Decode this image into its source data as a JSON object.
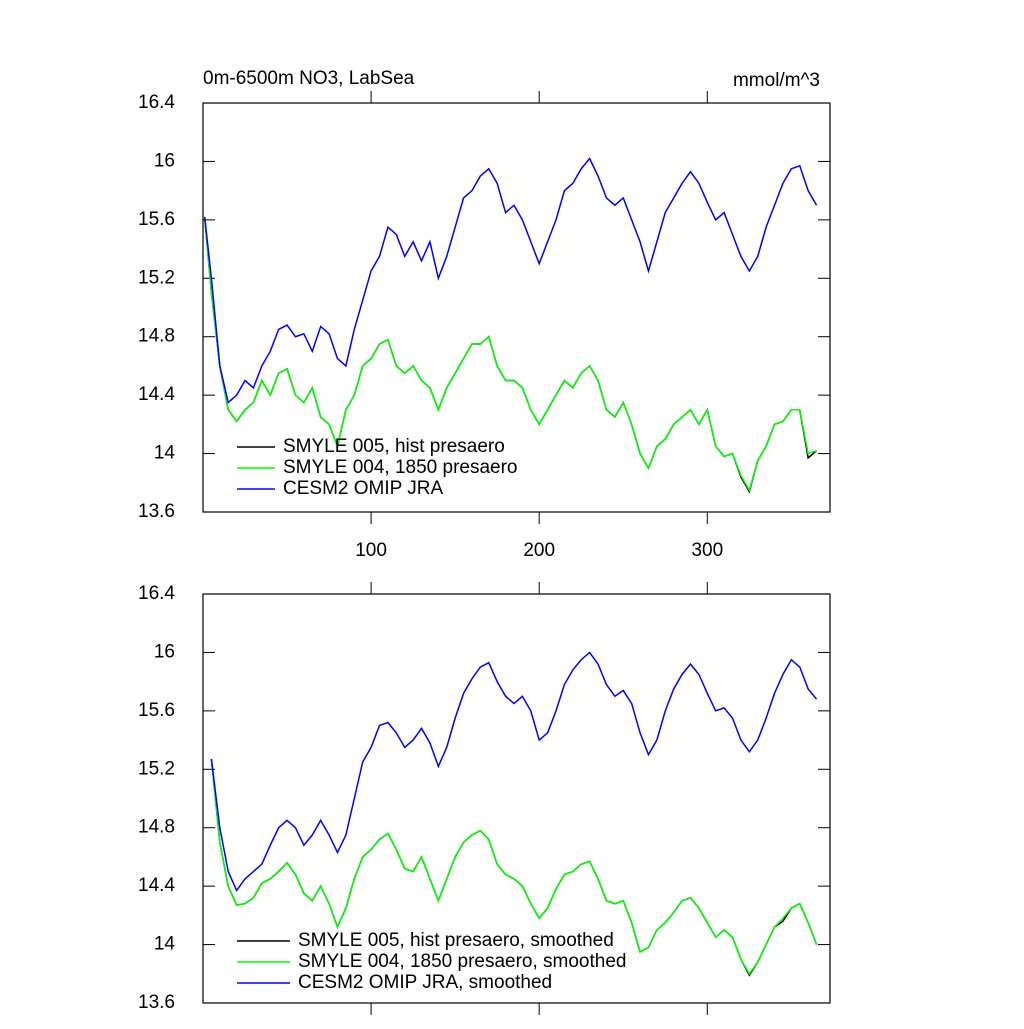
{
  "chart_data": [
    {
      "type": "line",
      "title": "0m-6500m NO3, LabSea",
      "units": "mmol/m^3",
      "x": [
        1,
        5,
        10,
        15,
        20,
        25,
        30,
        35,
        40,
        45,
        50,
        55,
        60,
        65,
        70,
        75,
        80,
        85,
        90,
        95,
        100,
        105,
        110,
        115,
        120,
        125,
        130,
        135,
        140,
        145,
        150,
        155,
        160,
        165,
        170,
        175,
        180,
        185,
        190,
        195,
        200,
        205,
        210,
        215,
        220,
        225,
        230,
        235,
        240,
        245,
        250,
        255,
        260,
        265,
        270,
        275,
        280,
        285,
        290,
        295,
        300,
        305,
        310,
        315,
        320,
        325,
        330,
        335,
        340,
        345,
        350,
        355,
        360,
        365
      ],
      "series": [
        {
          "name": "SMYLE 005, hist presaero",
          "color": "#000000",
          "values": [
            15.62,
            15.1,
            14.6,
            14.3,
            14.22,
            14.3,
            14.35,
            14.5,
            14.4,
            14.55,
            14.58,
            14.4,
            14.35,
            14.45,
            14.25,
            14.2,
            14.05,
            14.3,
            14.4,
            14.6,
            14.65,
            14.75,
            14.78,
            14.6,
            14.55,
            14.6,
            14.5,
            14.45,
            14.3,
            14.45,
            14.55,
            14.65,
            14.75,
            14.75,
            14.8,
            14.6,
            14.5,
            14.5,
            14.45,
            14.3,
            14.2,
            14.3,
            14.4,
            14.5,
            14.45,
            14.55,
            14.6,
            14.5,
            14.3,
            14.25,
            14.35,
            14.2,
            14.0,
            13.9,
            14.05,
            14.1,
            14.2,
            14.25,
            14.3,
            14.2,
            14.3,
            14.05,
            13.98,
            14.0,
            13.84,
            13.74,
            13.95,
            14.05,
            14.2,
            14.22,
            14.3,
            14.3,
            13.97,
            14.02
          ]
        },
        {
          "name": "SMYLE 004, 1850 presaero",
          "color": "#00ff00",
          "values": [
            15.62,
            15.1,
            14.6,
            14.3,
            14.22,
            14.3,
            14.35,
            14.5,
            14.4,
            14.55,
            14.58,
            14.4,
            14.35,
            14.45,
            14.25,
            14.2,
            14.05,
            14.3,
            14.4,
            14.6,
            14.65,
            14.75,
            14.78,
            14.6,
            14.55,
            14.6,
            14.5,
            14.45,
            14.3,
            14.45,
            14.55,
            14.65,
            14.75,
            14.75,
            14.8,
            14.6,
            14.5,
            14.5,
            14.45,
            14.3,
            14.2,
            14.3,
            14.4,
            14.5,
            14.45,
            14.55,
            14.6,
            14.5,
            14.3,
            14.25,
            14.35,
            14.2,
            14.0,
            13.9,
            14.05,
            14.1,
            14.2,
            14.25,
            14.3,
            14.2,
            14.3,
            14.05,
            13.98,
            14.0,
            13.85,
            13.75,
            13.95,
            14.05,
            14.2,
            14.22,
            14.3,
            14.3,
            14.0,
            14.02
          ]
        },
        {
          "name": "CESM2 OMIP JRA",
          "color": "#0000ff",
          "values": [
            15.62,
            15.2,
            14.6,
            14.35,
            14.4,
            14.5,
            14.45,
            14.6,
            14.7,
            14.85,
            14.88,
            14.8,
            14.82,
            14.7,
            14.87,
            14.82,
            14.65,
            14.6,
            14.85,
            15.05,
            15.25,
            15.35,
            15.55,
            15.5,
            15.35,
            15.45,
            15.32,
            15.45,
            15.2,
            15.35,
            15.55,
            15.75,
            15.8,
            15.9,
            15.95,
            15.85,
            15.65,
            15.7,
            15.6,
            15.45,
            15.3,
            15.45,
            15.6,
            15.8,
            15.85,
            15.95,
            16.02,
            15.9,
            15.75,
            15.7,
            15.75,
            15.6,
            15.45,
            15.25,
            15.45,
            15.65,
            15.75,
            15.85,
            15.93,
            15.85,
            15.72,
            15.6,
            15.65,
            15.5,
            15.35,
            15.25,
            15.35,
            15.55,
            15.7,
            15.85,
            15.95,
            15.97,
            15.8,
            15.7
          ]
        }
      ],
      "xlim": [
        0,
        373
      ],
      "xticks": [
        100,
        200,
        300
      ],
      "show_xtick_labels": true,
      "ylim": [
        13.6,
        16.4
      ],
      "yticks": [
        13.6,
        14.0,
        14.4,
        14.8,
        15.2,
        15.6,
        16.0,
        16.4
      ],
      "legend": "lower left"
    },
    {
      "type": "line",
      "x": [
        5,
        10,
        15,
        20,
        25,
        30,
        35,
        40,
        45,
        50,
        55,
        60,
        65,
        70,
        75,
        80,
        85,
        90,
        95,
        100,
        105,
        110,
        115,
        120,
        125,
        130,
        135,
        140,
        145,
        150,
        155,
        160,
        165,
        170,
        175,
        180,
        185,
        190,
        195,
        200,
        205,
        210,
        215,
        220,
        225,
        230,
        235,
        240,
        245,
        250,
        255,
        260,
        265,
        270,
        275,
        280,
        285,
        290,
        295,
        300,
        305,
        310,
        315,
        320,
        325,
        330,
        335,
        340,
        345,
        350,
        355,
        360,
        365
      ],
      "series": [
        {
          "name": "SMYLE 005, hist presaero, smoothed",
          "color": "#000000",
          "values": [
            15.27,
            14.7,
            14.4,
            14.27,
            14.28,
            14.32,
            14.42,
            14.45,
            14.5,
            14.56,
            14.48,
            14.35,
            14.3,
            14.4,
            14.28,
            14.12,
            14.25,
            14.45,
            14.6,
            14.65,
            14.72,
            14.76,
            14.65,
            14.52,
            14.5,
            14.6,
            14.45,
            14.3,
            14.45,
            14.6,
            14.7,
            14.75,
            14.78,
            14.72,
            14.55,
            14.48,
            14.45,
            14.4,
            14.28,
            14.18,
            14.25,
            14.38,
            14.48,
            14.5,
            14.55,
            14.57,
            14.45,
            14.3,
            14.28,
            14.3,
            14.15,
            13.95,
            13.98,
            14.1,
            14.15,
            14.22,
            14.3,
            14.32,
            14.25,
            14.15,
            14.05,
            14.1,
            14.05,
            13.9,
            13.79,
            13.88,
            14.0,
            14.12,
            14.16,
            14.25,
            14.28,
            14.15,
            14.0
          ]
        },
        {
          "name": "SMYLE 004, 1850 presaero, smoothed",
          "color": "#00ff00",
          "values": [
            15.27,
            14.7,
            14.4,
            14.27,
            14.28,
            14.32,
            14.42,
            14.45,
            14.5,
            14.56,
            14.48,
            14.35,
            14.3,
            14.4,
            14.28,
            14.12,
            14.25,
            14.45,
            14.6,
            14.65,
            14.72,
            14.76,
            14.65,
            14.52,
            14.5,
            14.6,
            14.45,
            14.3,
            14.45,
            14.6,
            14.7,
            14.75,
            14.78,
            14.72,
            14.55,
            14.48,
            14.45,
            14.4,
            14.28,
            14.18,
            14.25,
            14.38,
            14.48,
            14.5,
            14.55,
            14.57,
            14.45,
            14.3,
            14.28,
            14.3,
            14.15,
            13.95,
            13.98,
            14.1,
            14.15,
            14.22,
            14.3,
            14.32,
            14.25,
            14.15,
            14.05,
            14.1,
            14.05,
            13.9,
            13.8,
            13.88,
            14.0,
            14.12,
            14.18,
            14.25,
            14.28,
            14.15,
            14.0
          ]
        },
        {
          "name": "CESM2 OMIP JRA, smoothed",
          "color": "#0000ff",
          "values": [
            15.27,
            14.8,
            14.5,
            14.37,
            14.45,
            14.5,
            14.55,
            14.68,
            14.8,
            14.85,
            14.8,
            14.68,
            14.75,
            14.85,
            14.75,
            14.63,
            14.75,
            15.0,
            15.25,
            15.35,
            15.5,
            15.52,
            15.45,
            15.35,
            15.4,
            15.48,
            15.38,
            15.22,
            15.35,
            15.55,
            15.72,
            15.82,
            15.9,
            15.93,
            15.8,
            15.7,
            15.65,
            15.7,
            15.6,
            15.4,
            15.45,
            15.6,
            15.78,
            15.88,
            15.95,
            16.0,
            15.92,
            15.78,
            15.7,
            15.74,
            15.65,
            15.45,
            15.3,
            15.4,
            15.6,
            15.75,
            15.85,
            15.92,
            15.85,
            15.72,
            15.6,
            15.62,
            15.55,
            15.4,
            15.32,
            15.4,
            15.55,
            15.72,
            15.85,
            15.95,
            15.9,
            15.75,
            15.68
          ]
        }
      ],
      "xlim": [
        0,
        373
      ],
      "xticks": [
        100,
        200,
        300
      ],
      "show_xtick_labels": false,
      "ylim": [
        13.6,
        16.4
      ],
      "yticks": [
        13.6,
        14.0,
        14.4,
        14.8,
        15.2,
        15.6,
        16.0,
        16.4
      ],
      "legend": "lower left"
    }
  ]
}
